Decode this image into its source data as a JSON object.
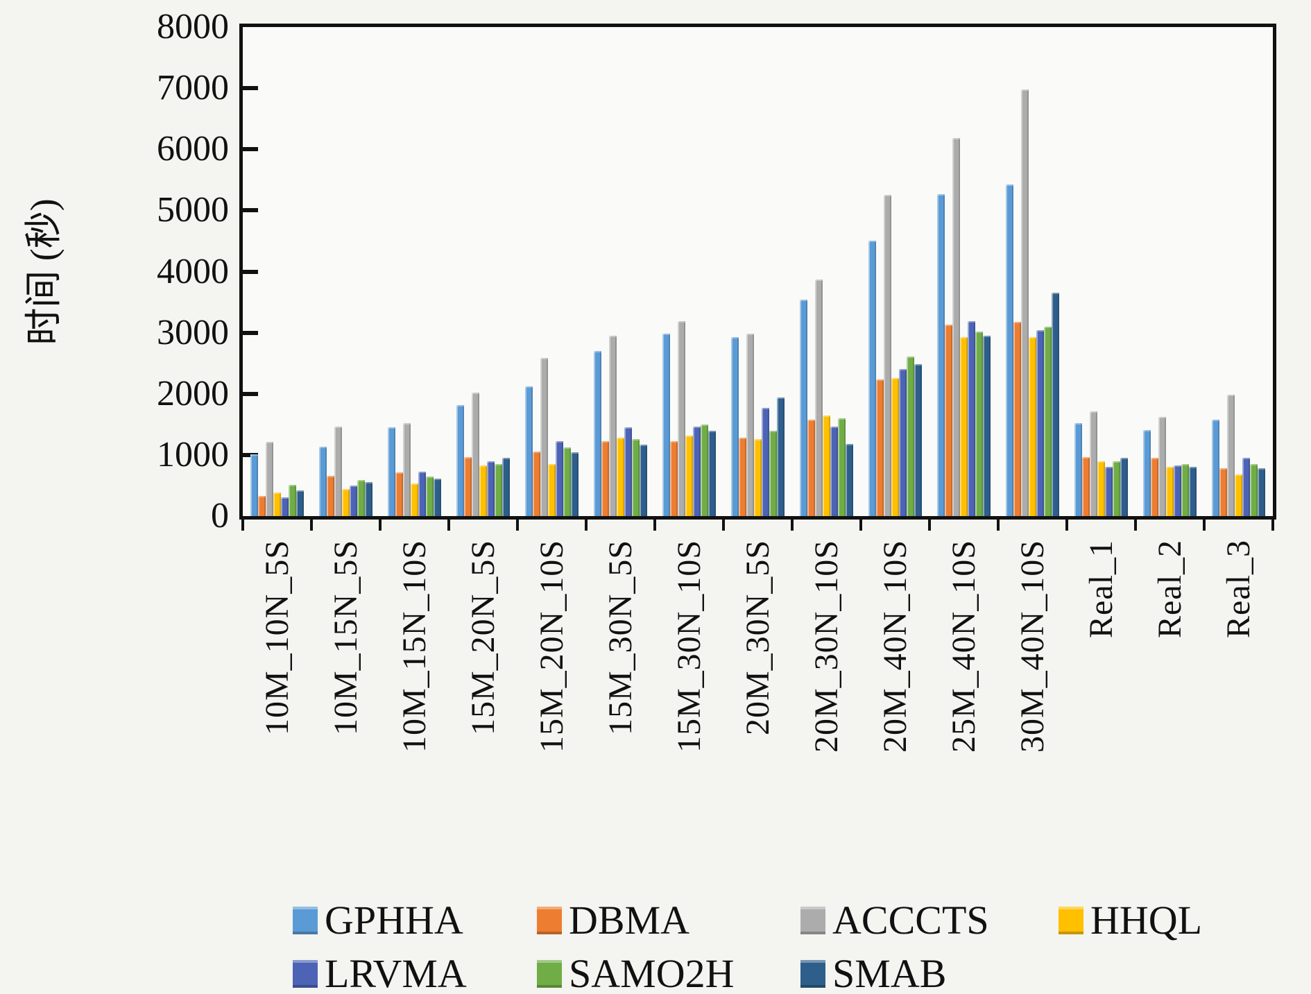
{
  "chart_data": {
    "type": "bar",
    "title": "",
    "ylabel": "时间 (秒)",
    "xlabel": "",
    "ylim": [
      0,
      8000
    ],
    "y_ticks": [
      0,
      1000,
      2000,
      3000,
      4000,
      5000,
      6000,
      7000,
      8000
    ],
    "grid": false,
    "legend_position": "bottom",
    "categories": [
      "10M_10N_5S",
      "10M_15N_5S",
      "10M_15N_10S",
      "15M_20N_5S",
      "15M_20N_10S",
      "15M_30N_5S",
      "15M_30N_10S",
      "20M_30N_5S",
      "20M_30N_10S",
      "20M_40N_10S",
      "25M_40N_10S",
      "30M_40N_10S",
      "Real_1",
      "Real_2",
      "Real_3"
    ],
    "series": [
      {
        "name": "GPHHA",
        "color": "#5B9BD5",
        "values": [
          1010,
          1130,
          1450,
          1820,
          2120,
          2700,
          2980,
          2930,
          3540,
          4500,
          5270,
          5420,
          1520,
          1410,
          1580
        ]
      },
      {
        "name": "DBMA",
        "color": "#ED7D31",
        "values": [
          330,
          660,
          720,
          960,
          1060,
          1230,
          1230,
          1280,
          1580,
          2230,
          3130,
          3180,
          960,
          950,
          780
        ]
      },
      {
        "name": "ACCCTS",
        "color": "#ACACAC",
        "values": [
          1210,
          1460,
          1520,
          2020,
          2590,
          2950,
          3190,
          2980,
          3870,
          5250,
          6190,
          6980,
          1710,
          1620,
          1990
        ]
      },
      {
        "name": "HHQL",
        "color": "#FFC000",
        "values": [
          390,
          440,
          530,
          830,
          850,
          1280,
          1320,
          1260,
          1650,
          2260,
          2930,
          2930,
          900,
          810,
          680
        ]
      },
      {
        "name": "LRVMA",
        "color": "#4C63B6",
        "values": [
          310,
          500,
          730,
          900,
          1230,
          1450,
          1460,
          1770,
          1460,
          2410,
          3190,
          3040,
          810,
          830,
          950
        ]
      },
      {
        "name": "SAMO2H",
        "color": "#70AD47",
        "values": [
          510,
          590,
          650,
          850,
          1120,
          1260,
          1500,
          1400,
          1600,
          2610,
          3020,
          3100,
          900,
          850,
          850
        ]
      },
      {
        "name": "SMAB",
        "color": "#2E5E8A",
        "values": [
          420,
          560,
          610,
          950,
          1040,
          1170,
          1400,
          1940,
          1180,
          2480,
          2950,
          3650,
          950,
          810,
          780
        ]
      }
    ]
  }
}
